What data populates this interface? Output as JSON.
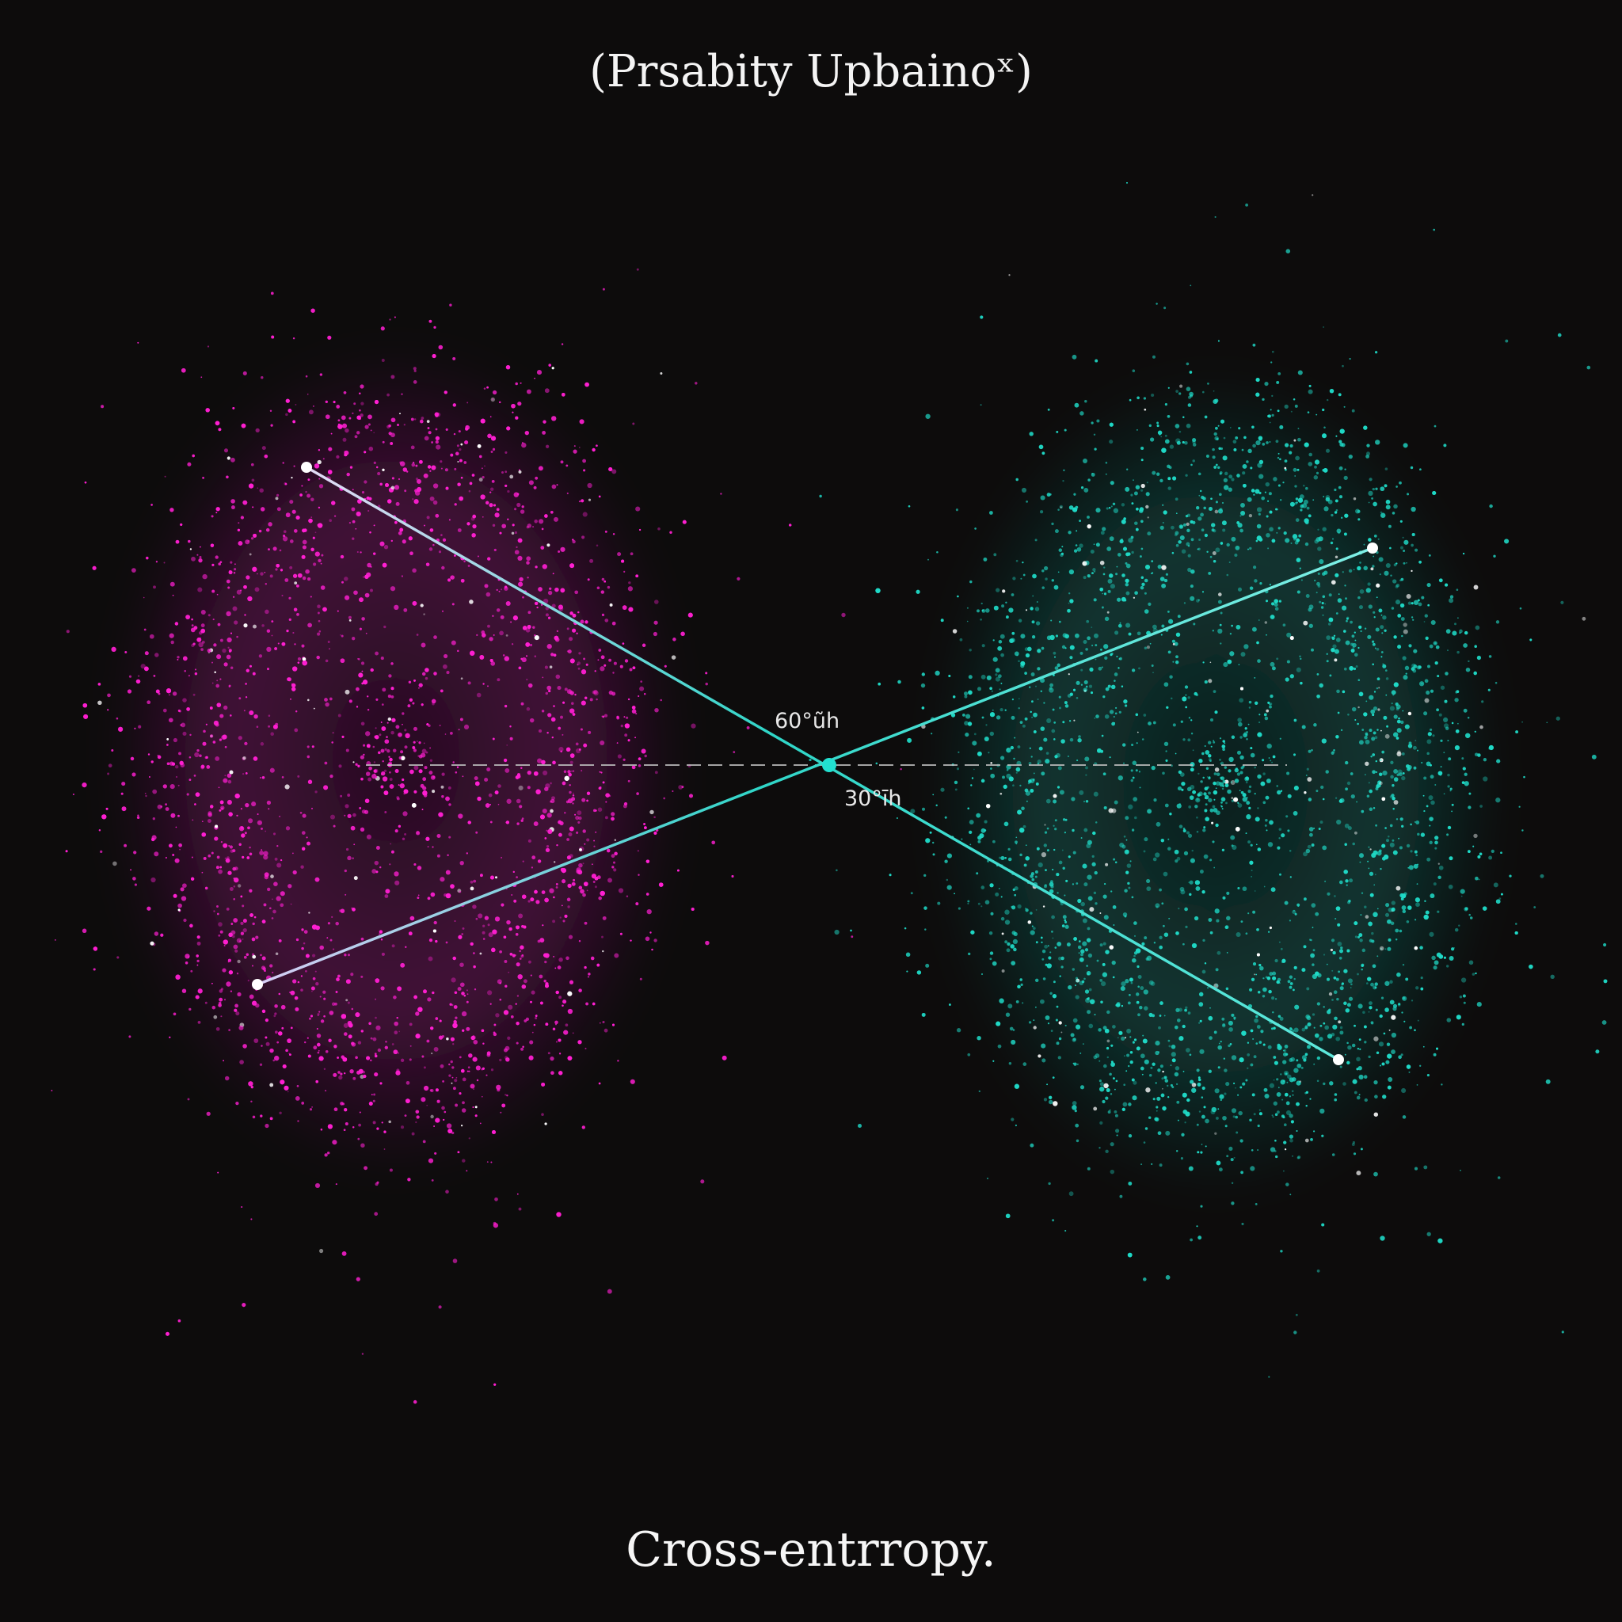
{
  "title": "(Prsabity Upbainoˣ)",
  "caption": "Cross-entrropy.",
  "angle_labels": {
    "upper": "60°ũh",
    "lower": "30°īh"
  },
  "colors": {
    "background": "#0d0c0c",
    "left_cloud": "#ff1fd2",
    "right_cloud": "#1fd9c6",
    "line_left_end": "#d9c8f5",
    "line_right_end": "#2fd6c8",
    "center_point": "#22e0d0",
    "endpoint": "#ffffff",
    "dashed_axis": "#bfbfbf"
  }
}
